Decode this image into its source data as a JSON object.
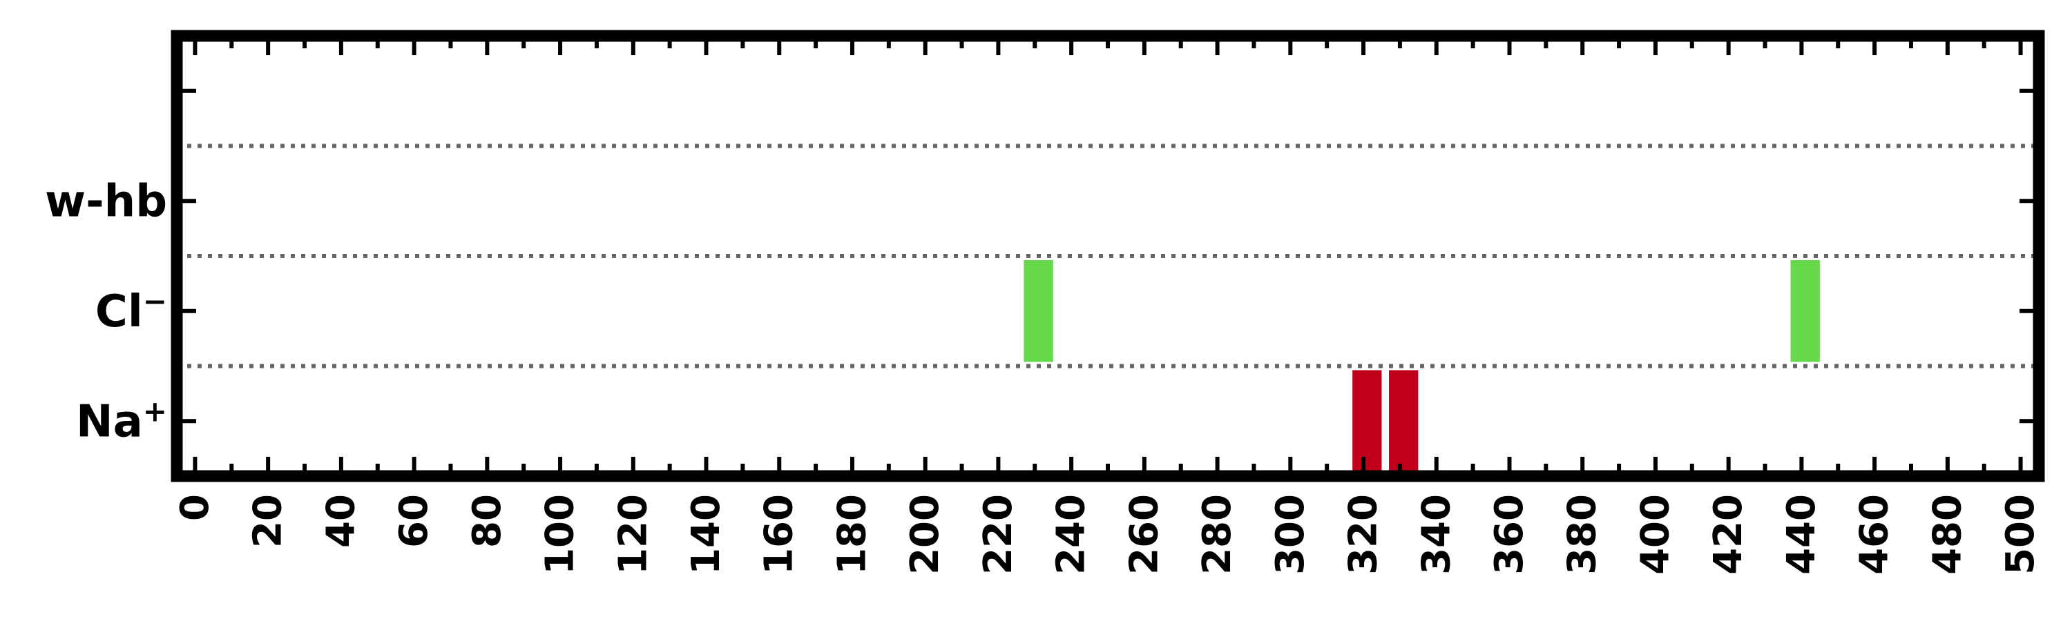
{
  "chart_data": {
    "type": "timeline",
    "title": "",
    "xlabel": "",
    "ylabel": "",
    "xlim": [
      -5,
      505
    ],
    "x_ticks": [
      0,
      20,
      40,
      60,
      80,
      100,
      120,
      140,
      160,
      180,
      200,
      220,
      240,
      260,
      280,
      300,
      320,
      340,
      360,
      380,
      400,
      420,
      440,
      460,
      480,
      500
    ],
    "x_minor_step": 10,
    "grid": "dotted horizontal lines between categories",
    "categories": [
      {
        "id": "na",
        "label": "Na",
        "superscript": "+"
      },
      {
        "id": "cl",
        "label": "Cl",
        "superscript": "−"
      },
      {
        "id": "whb",
        "label": "w-hb",
        "superscript": ""
      },
      {
        "id": "empty",
        "label": "",
        "superscript": ""
      }
    ],
    "series": [
      {
        "name": "Na+",
        "category": "na",
        "color": "#c0001a",
        "intervals": [
          [
            317,
            325
          ],
          [
            327,
            335
          ]
        ]
      },
      {
        "name": "Cl-",
        "category": "cl",
        "color": "#66d84c",
        "intervals": [
          [
            227,
            235
          ],
          [
            437,
            445
          ]
        ]
      },
      {
        "name": "w-hb",
        "category": "whb",
        "color": "#3060c0",
        "intervals": []
      }
    ]
  }
}
